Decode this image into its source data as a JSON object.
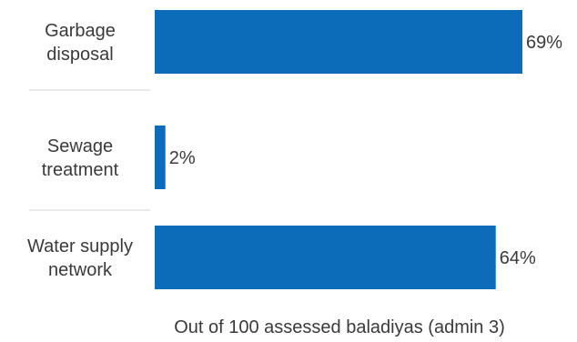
{
  "chart_data": {
    "type": "bar",
    "orientation": "horizontal",
    "categories": [
      [
        "Garbage",
        "disposal"
      ],
      [
        "Sewage",
        "treatment"
      ],
      [
        "Water supply",
        "network"
      ]
    ],
    "values": [
      69,
      2,
      64
    ],
    "value_labels": [
      "69%",
      "2%",
      "64%"
    ],
    "xlabel": "Out of 100 assessed baladiyas (admin 3)",
    "xlim": [
      0,
      100
    ],
    "grid": false,
    "legend": "none",
    "bar_color": "#0d6cba"
  }
}
